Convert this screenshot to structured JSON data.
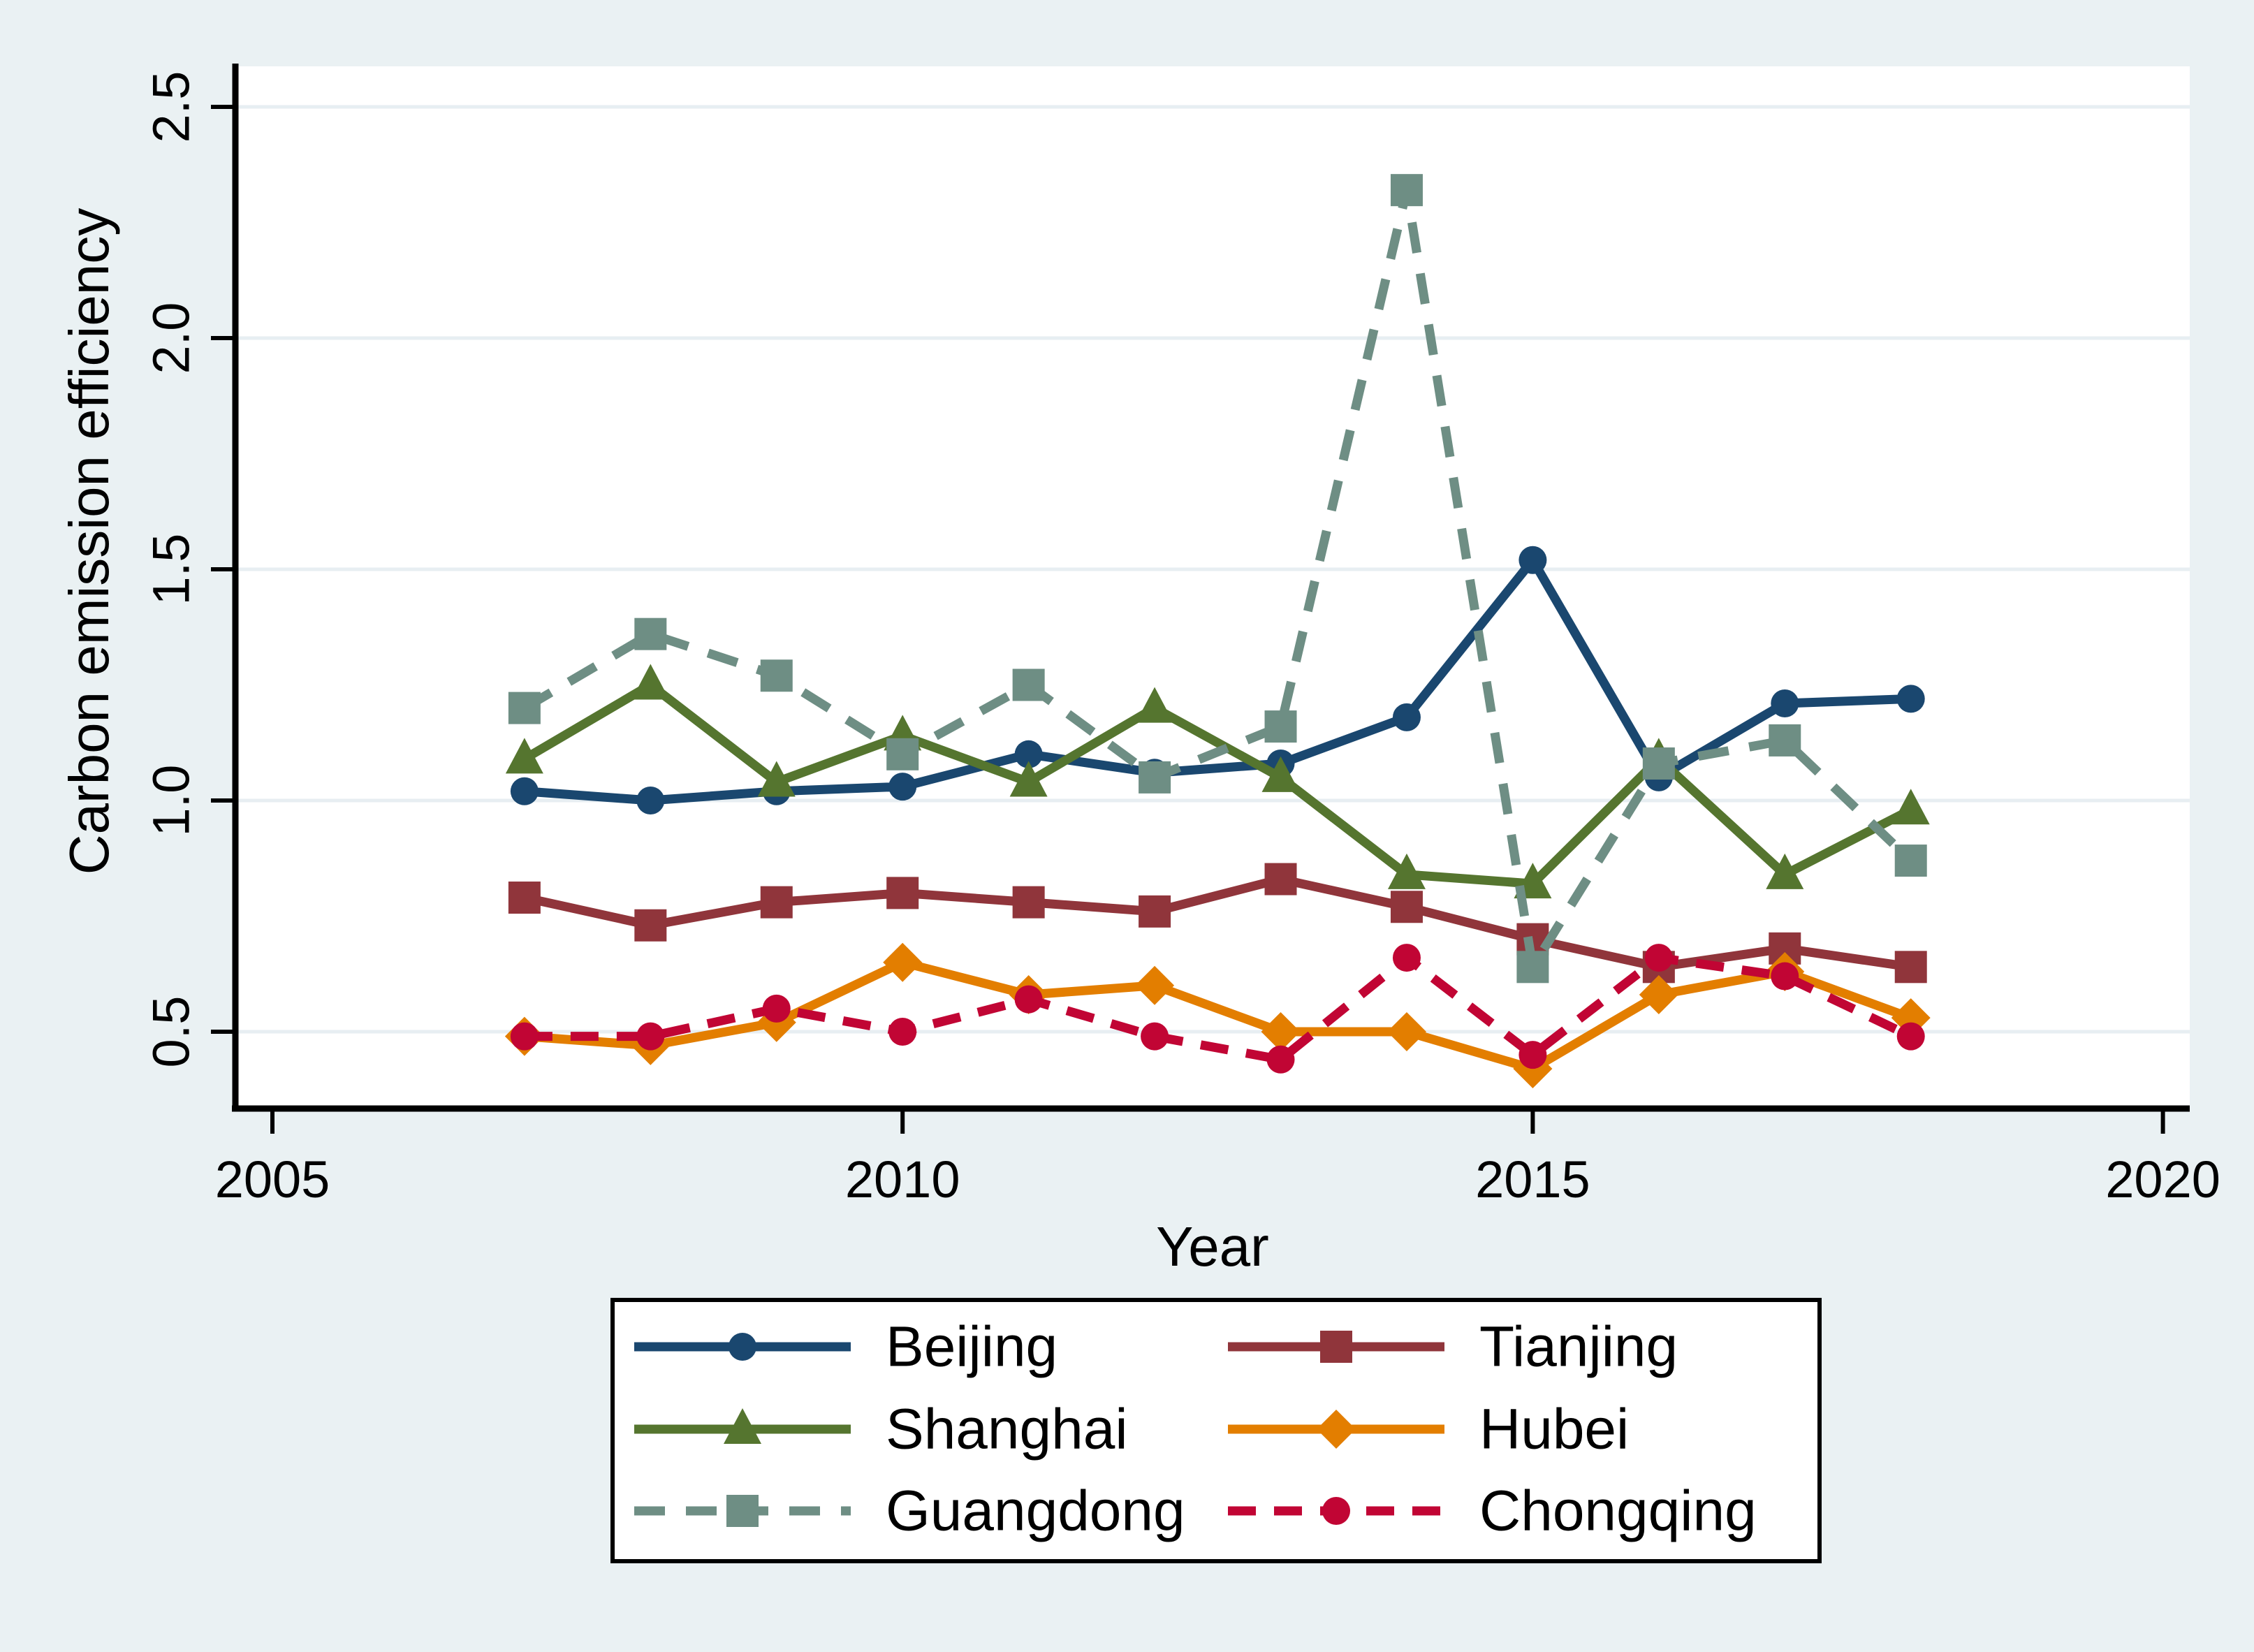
{
  "figure": {
    "background_color": "#EAF1F3",
    "plot_background_color": "#FFFFFF",
    "gridline_color": "#E7EEF2",
    "axis_color": "#000000"
  },
  "chart_data": {
    "type": "line",
    "title": "",
    "xlabel": "Year",
    "ylabel": "Carbon emission efficiency",
    "x": [
      2007,
      2008,
      2009,
      2010,
      2011,
      2012,
      2013,
      2014,
      2015,
      2016,
      2017,
      2018
    ],
    "xlim": [
      2004.7,
      2020.25
    ],
    "ylim": [
      0.33,
      2.59
    ],
    "x_ticks": [
      2005,
      2010,
      2015,
      2020
    ],
    "x_tick_labels": [
      "2005",
      "2010",
      "2015",
      "2020"
    ],
    "y_ticks": [
      0.5,
      1.0,
      1.5,
      2.0,
      2.5
    ],
    "y_tick_labels": [
      "0.5",
      "1.0",
      "1.5",
      "2.0",
      "2.5"
    ],
    "grid": true,
    "legend_position": "bottom",
    "series": [
      {
        "name": "Beijing",
        "color": "#1A476F",
        "marker": "circle",
        "line": "solid",
        "values": [
          1.02,
          1.0,
          1.02,
          1.03,
          1.1,
          1.06,
          1.08,
          1.18,
          1.52,
          1.05,
          1.21,
          1.22
        ]
      },
      {
        "name": "Tianjing",
        "color": "#90353B",
        "marker": "square",
        "line": "solid",
        "values": [
          0.79,
          0.73,
          0.78,
          0.8,
          0.78,
          0.76,
          0.83,
          0.77,
          0.7,
          0.64,
          0.68,
          0.64
        ]
      },
      {
        "name": "Shanghai",
        "color": "#55752F",
        "marker": "triangle",
        "line": "solid",
        "values": [
          1.09,
          1.25,
          1.04,
          1.14,
          1.04,
          1.2,
          1.05,
          0.84,
          0.82,
          1.09,
          0.84,
          0.98
        ]
      },
      {
        "name": "Hubei",
        "color": "#E37E00",
        "marker": "diamond",
        "line": "solid",
        "values": [
          0.49,
          0.47,
          0.52,
          0.65,
          0.58,
          0.6,
          0.5,
          0.5,
          0.42,
          0.58,
          0.63,
          0.53
        ]
      },
      {
        "name": "Guangdong",
        "color": "#6E8E84",
        "marker": "square",
        "line": "dashed",
        "values": [
          1.2,
          1.36,
          1.27,
          1.1,
          1.25,
          1.05,
          1.16,
          2.32,
          0.64,
          1.08,
          1.13,
          0.87
        ]
      },
      {
        "name": "Chongqing",
        "color": "#C10534",
        "marker": "circle",
        "line": "dashed",
        "values": [
          0.49,
          0.49,
          0.55,
          0.5,
          0.57,
          0.49,
          0.44,
          0.66,
          0.45,
          0.66,
          0.62,
          0.49
        ]
      }
    ]
  },
  "axes": {
    "x": {
      "title": "Year"
    },
    "y": {
      "title": "Carbon emission efficiency"
    }
  },
  "legend": {
    "entries": [
      "Beijing",
      "Tianjing",
      "Shanghai",
      "Hubei",
      "Guangdong",
      "Chongqing"
    ]
  }
}
